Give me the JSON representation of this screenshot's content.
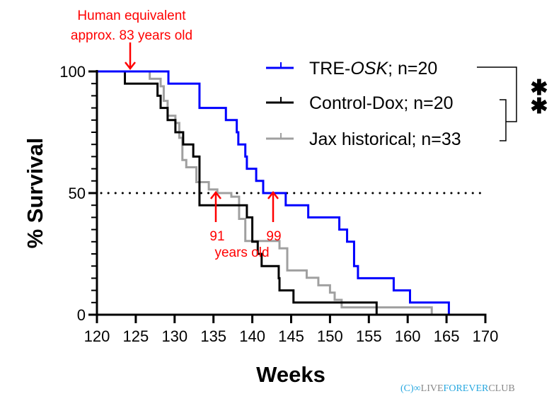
{
  "chart_data": {
    "type": "line",
    "subtype": "kaplan-meier step",
    "xlabel": "Weeks",
    "ylabel": "% Survival",
    "xlim": [
      120,
      170
    ],
    "ylim": [
      0,
      100
    ],
    "xticks": [
      120,
      125,
      130,
      135,
      140,
      145,
      150,
      155,
      160,
      165,
      170
    ],
    "yticks": [
      0,
      50,
      100
    ],
    "grid": false,
    "reference_line": {
      "y": 50,
      "style": "dotted"
    },
    "legend_placement": "top-right",
    "series": [
      {
        "name": "TRE-OSK; n=20",
        "name_plain": "TRE-",
        "name_italic": "OSK",
        "name_suffix": "; n=20",
        "color": "#0000ff",
        "steps": [
          [
            120,
            100
          ],
          [
            129.2,
            95
          ],
          [
            133.2,
            85
          ],
          [
            136.6,
            80
          ],
          [
            138.0,
            75
          ],
          [
            138.2,
            70
          ],
          [
            139.1,
            65
          ],
          [
            139.3,
            60
          ],
          [
            140.5,
            55
          ],
          [
            141.4,
            50
          ],
          [
            144.3,
            45
          ],
          [
            147.2,
            40
          ],
          [
            151.2,
            35
          ],
          [
            152.2,
            30
          ],
          [
            153.1,
            20
          ],
          [
            153.6,
            15
          ],
          [
            158.2,
            10
          ],
          [
            160.3,
            5
          ],
          [
            165.3,
            0
          ]
        ]
      },
      {
        "name": "Control-Dox; n=20",
        "color": "#000000",
        "steps": [
          [
            120,
            100
          ],
          [
            123.6,
            95
          ],
          [
            127.8,
            90
          ],
          [
            128.2,
            85
          ],
          [
            129.1,
            80
          ],
          [
            130.1,
            75
          ],
          [
            131.1,
            70
          ],
          [
            132.4,
            65
          ],
          [
            133.2,
            45
          ],
          [
            139.3,
            40
          ],
          [
            140.0,
            30
          ],
          [
            140.7,
            25
          ],
          [
            141.2,
            20
          ],
          [
            143.4,
            15
          ],
          [
            143.5,
            10
          ],
          [
            145.3,
            5
          ],
          [
            156.0,
            0
          ]
        ]
      },
      {
        "name": "Jax historical; n=33",
        "color": "#a0a0a0",
        "steps": [
          [
            120,
            100
          ],
          [
            126.8,
            97.0
          ],
          [
            128.2,
            93.9
          ],
          [
            128.6,
            87.9
          ],
          [
            129.1,
            81.8
          ],
          [
            130.1,
            78.8
          ],
          [
            130.6,
            72.7
          ],
          [
            131.0,
            63.6
          ],
          [
            131.5,
            60.6
          ],
          [
            132.8,
            54.5
          ],
          [
            134.4,
            51.5
          ],
          [
            135.5,
            50.0
          ],
          [
            137.3,
            48.5
          ],
          [
            138.3,
            39.4
          ],
          [
            139.1,
            30.3
          ],
          [
            143.5,
            27.3
          ],
          [
            144.5,
            18.2
          ],
          [
            147.0,
            15.2
          ],
          [
            148.5,
            12.1
          ],
          [
            150.0,
            9.1
          ],
          [
            150.6,
            6.1
          ],
          [
            151.5,
            3.0
          ],
          [
            163.1,
            0
          ]
        ]
      }
    ],
    "significance": "**",
    "annotations": [
      {
        "text": "Human equivalent",
        "line2": "approx. 83 years old",
        "x": 124.3,
        "arrow": "down"
      },
      {
        "text": "91",
        "x": 135.3,
        "y": 50,
        "arrow": "up"
      },
      {
        "text": "99",
        "x": 142.7,
        "y": 50,
        "arrow": "up"
      },
      {
        "text": "years old"
      }
    ],
    "accent_color": "#ff0000"
  },
  "watermark": {
    "prefix": "(C)",
    "live": "LIVE",
    "forever": "FOREVER",
    "club": "CLUB"
  }
}
